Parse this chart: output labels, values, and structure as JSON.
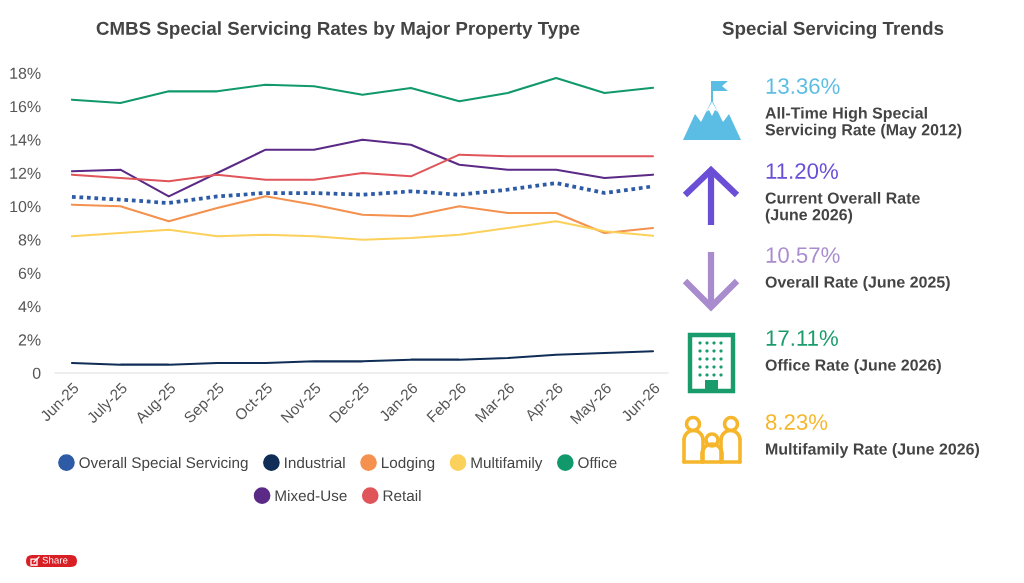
{
  "chart_data": [
    {
      "type": "line",
      "title": "CMBS Special Servicing Rates by Major Property Type",
      "categories": [
        "Jun-25",
        "July-25",
        "Aug-25",
        "Sep-25",
        "Oct-25",
        "Nov-25",
        "Dec-25",
        "Jan-26",
        "Feb-26",
        "Mar-26",
        "Apr-26",
        "May-26",
        "Jun-26"
      ],
      "ylim": [
        0,
        18
      ],
      "yticks": [
        0,
        {
          "value": 2,
          "label": "2%"
        },
        {
          "value": 4,
          "label": "4%"
        },
        {
          "value": 6,
          "label": "6%"
        },
        {
          "value": 8,
          "label": "8%"
        },
        {
          "value": 10,
          "label": "10%"
        },
        {
          "value": 12,
          "label": "12%"
        },
        {
          "value": 14,
          "label": "14%"
        },
        {
          "value": 16,
          "label": "16%"
        },
        {
          "value": 18,
          "label": "18%"
        }
      ],
      "series": [
        {
          "name": "Overall Special Servicing",
          "color": "#2d5ba6",
          "line_style": "dotted",
          "values": [
            10.57,
            10.4,
            10.2,
            10.6,
            10.8,
            10.8,
            10.7,
            10.9,
            10.7,
            11.0,
            11.4,
            10.8,
            11.2
          ]
        },
        {
          "name": "Industrial",
          "color": "#0f2d56",
          "values": [
            0.6,
            0.5,
            0.5,
            0.6,
            0.6,
            0.7,
            0.7,
            0.8,
            0.8,
            0.9,
            1.1,
            1.2,
            1.3
          ]
        },
        {
          "name": "Lodging",
          "color": "#f4914e",
          "values": [
            10.1,
            10.0,
            9.1,
            9.9,
            10.6,
            10.1,
            9.5,
            9.4,
            10.0,
            9.6,
            9.6,
            8.4,
            8.7
          ]
        },
        {
          "name": "Multifamily",
          "color": "#fcd15b",
          "values": [
            8.2,
            8.4,
            8.6,
            8.2,
            8.3,
            8.2,
            8.0,
            8.1,
            8.3,
            8.7,
            9.1,
            8.5,
            8.23
          ]
        },
        {
          "name": "Office",
          "color": "#11996b",
          "values": [
            16.4,
            16.2,
            16.9,
            16.9,
            17.3,
            17.2,
            16.7,
            17.1,
            16.3,
            16.8,
            17.7,
            16.8,
            17.11
          ]
        },
        {
          "name": "Mixed-Use",
          "color": "#5b2a86",
          "values": [
            12.1,
            12.2,
            10.6,
            12.0,
            13.4,
            13.4,
            14.0,
            13.7,
            12.5,
            12.2,
            12.2,
            11.7,
            11.9
          ]
        },
        {
          "name": "Retail",
          "color": "#e0555a",
          "values": [
            11.9,
            11.7,
            11.5,
            11.9,
            11.6,
            11.6,
            12.0,
            11.8,
            13.1,
            13.0,
            13.0,
            13.0,
            13.0
          ]
        }
      ],
      "legend": "bottom",
      "annotations": [
        "Share"
      ]
    },
    {
      "type": "other",
      "title": "Special Servicing Trends",
      "annotations": [
        "13.36%",
        "All-Time High Special\nServicing Rate (May 2012)",
        "11.20%",
        "Current Overall Rate\n(June 2026)",
        "10.57%",
        "Overall Rate (June 2025)",
        "17.11%",
        "Office Rate (June 2026)",
        "8.23%",
        "Multifamily Rate (June 2026)"
      ],
      "colors": [
        "#5bbde4",
        "#6a4fd6",
        "#a98ccd",
        "#1a9b6c",
        "#f6b62c"
      ]
    }
  ]
}
